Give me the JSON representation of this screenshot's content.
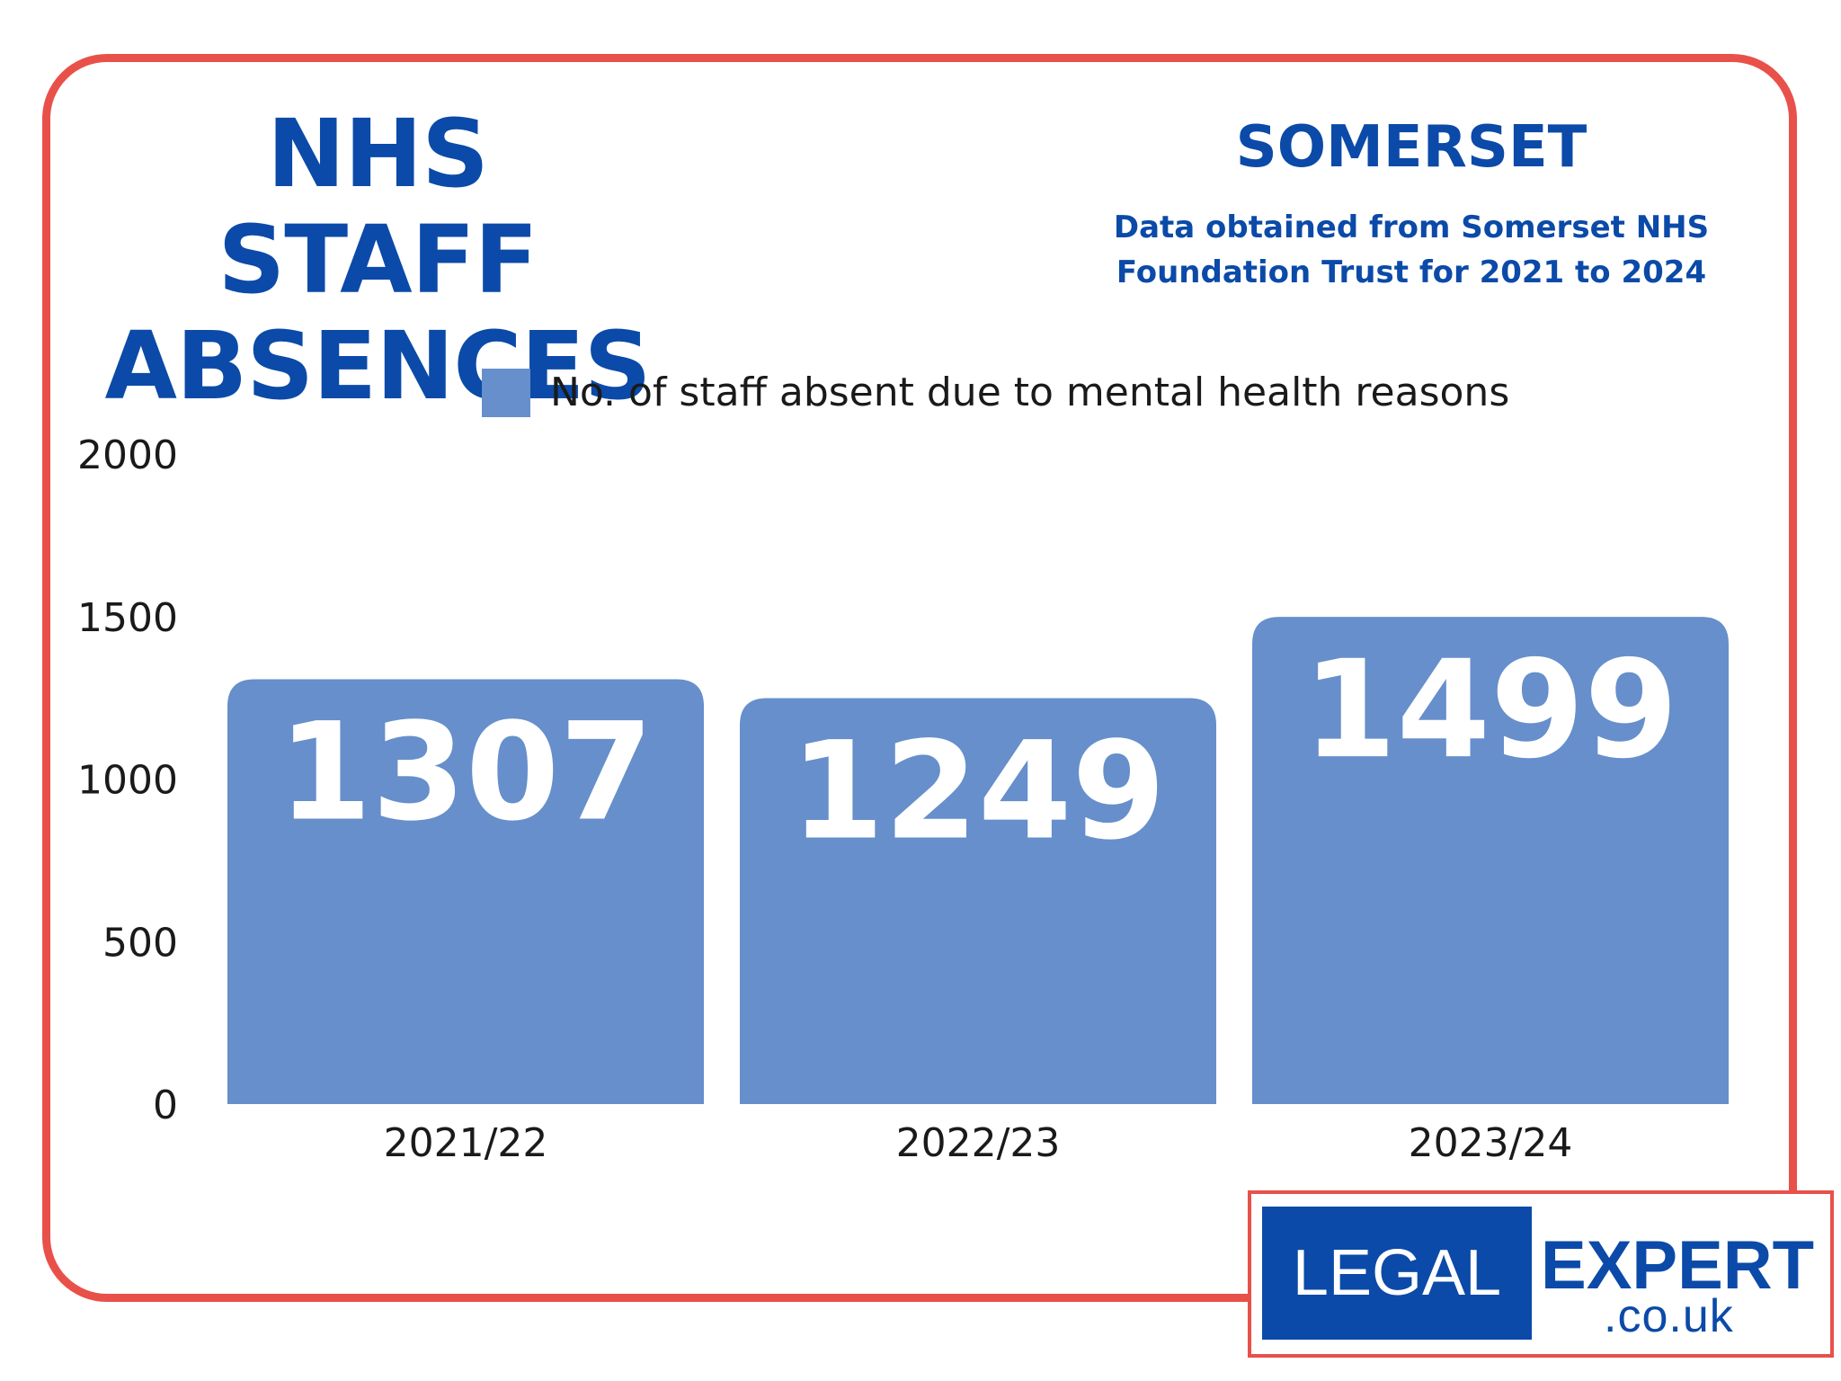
{
  "header": {
    "title": "NHS STAFF ABSENCES",
    "region": "SOMERSET",
    "source": "Data obtained from Somerset NHS Foundation Trust for 2021 to 2024"
  },
  "logo": {
    "left": "LEGAL",
    "right": "EXPERT",
    "sub": ".co.uk"
  },
  "colors": {
    "bar": "#668fcb",
    "frame": "#e8514a",
    "brand": "#0b4aa8"
  },
  "chart_data": {
    "type": "bar",
    "categories": [
      "2021/22",
      "2022/23",
      "2023/24"
    ],
    "series": [
      {
        "name": "No. of staff absent due to mental health reasons",
        "values": [
          1307,
          1249,
          1499
        ]
      }
    ],
    "title": "",
    "xlabel": "",
    "ylabel": "",
    "ylim": [
      0,
      2000
    ],
    "yticks": [
      0,
      500,
      1000,
      1500,
      2000
    ],
    "legend_position": "top",
    "grid": false
  }
}
